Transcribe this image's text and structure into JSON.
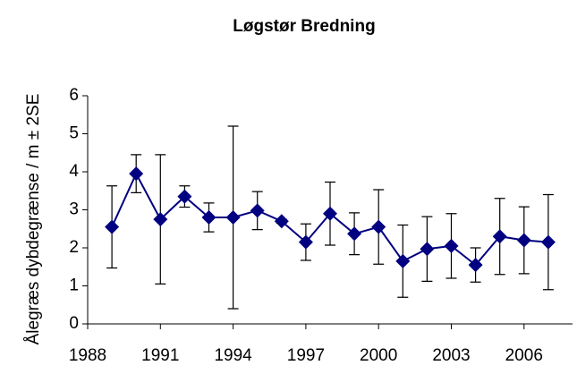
{
  "chart_data": {
    "type": "line",
    "title": "Løgstør Bredning",
    "y_label": "Ålegræs dybdegrænse / m ± 2SE",
    "x": [
      1989,
      1990,
      1991,
      1992,
      1993,
      1994,
      1995,
      1996,
      1997,
      1998,
      1999,
      2000,
      2001,
      2002,
      2003,
      2004,
      2005,
      2006,
      2007
    ],
    "values": [
      2.55,
      3.95,
      2.75,
      3.35,
      2.8,
      2.8,
      2.98,
      2.7,
      2.15,
      2.9,
      2.37,
      2.55,
      1.65,
      1.97,
      2.05,
      1.55,
      2.3,
      2.2,
      2.15
    ],
    "errors": [
      1.08,
      0.5,
      1.7,
      0.28,
      0.38,
      2.4,
      0.5,
      0.05,
      0.48,
      0.83,
      0.55,
      0.98,
      0.95,
      0.85,
      0.85,
      0.45,
      1.0,
      0.88,
      1.25
    ],
    "color": "#000080",
    "xlim": [
      1988,
      2008
    ],
    "ylim": [
      0,
      6
    ],
    "xticks": [
      1988,
      1991,
      1994,
      1997,
      2000,
      2003,
      2006
    ],
    "yticks": [
      0,
      1,
      2,
      3,
      4,
      5,
      6
    ]
  }
}
